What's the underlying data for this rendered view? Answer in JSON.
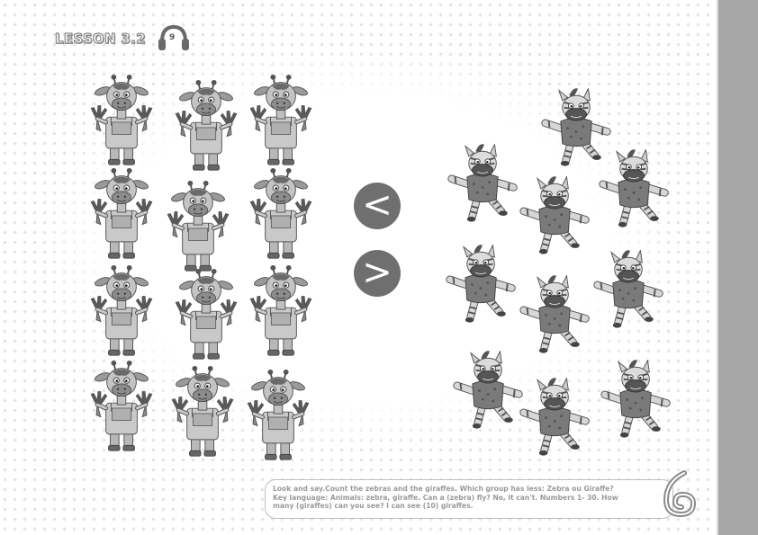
{
  "header": {
    "lesson_label": "LESSON 3.2",
    "audio_track": "9",
    "audio_icon": "headphones-icon"
  },
  "groups": {
    "giraffes": {
      "count": 12,
      "icon": "giraffe-illustration"
    },
    "zebras": {
      "count": 10,
      "icon": "zebra-illustration"
    }
  },
  "comparison": {
    "less_than": "<",
    "greater_than": ">"
  },
  "instructions": {
    "line1": "Look and say.Count the zebras and the giraffes. Which group has less: Zebra ou Giraffe?",
    "line2": "Key language: Animals: zebra, giraffe. Can a (zebra) fly? No, it can't. Numbers 1- 30. How",
    "line3": "many (giraffes) can you see? I can see (10) giraffes."
  },
  "colors": {
    "sidebar": "#a7a7a7",
    "symbol_circle": "#6f6f6f",
    "instruction_text": "#9a9a9a"
  }
}
